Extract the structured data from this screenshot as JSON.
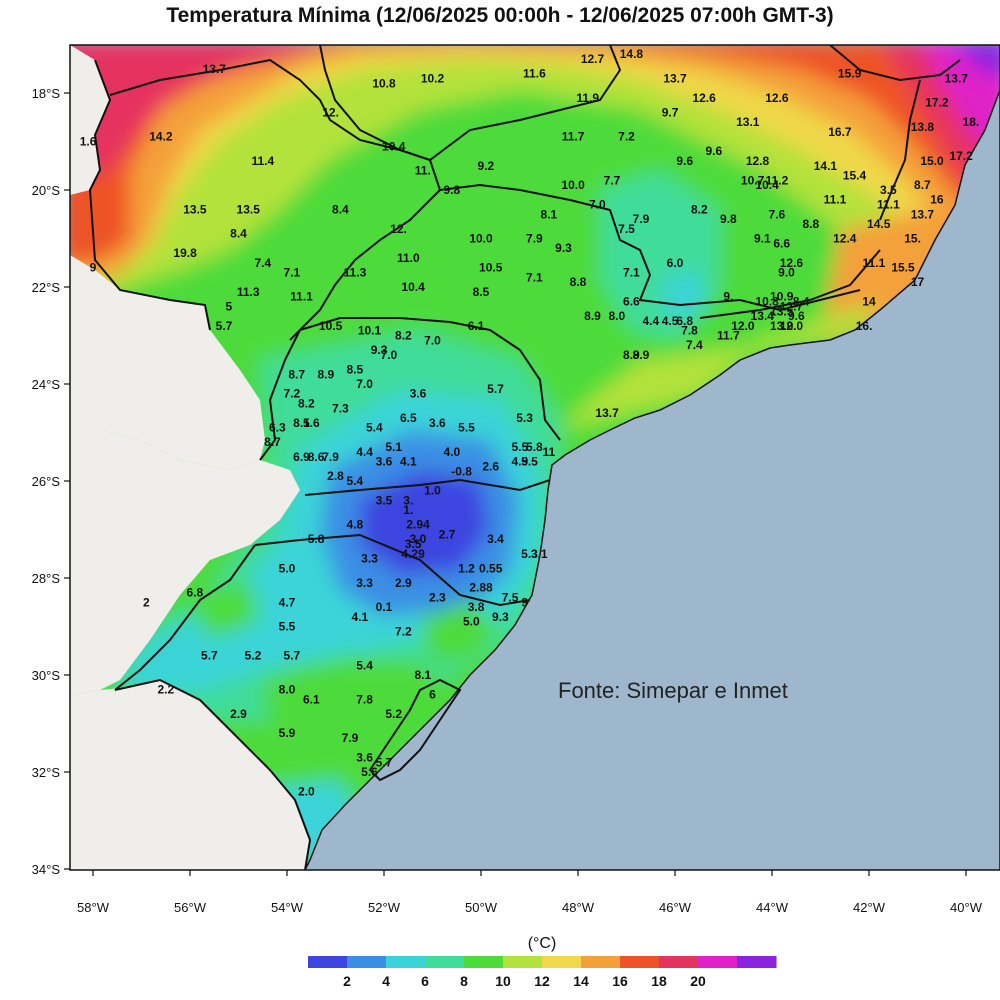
{
  "title": "Temperatura Mínima (12/06/2025 00:00h - 12/06/2025 07:00h GMT-3)",
  "source": "Fonte: Simepar e Inmet",
  "unit_label": "(°C)",
  "colors": {
    "ocean": "#9fb7cc",
    "foreign_land": "#f0eeea",
    "lt2": "#3d44e0",
    "c2_4": "#3a8fe4",
    "c4_6": "#3ad4d8",
    "c6_8": "#3fdc9a",
    "c8_10": "#4ddb3a",
    "c10_12": "#b2e23b",
    "c12_14": "#f0d84a",
    "c14_16": "#f4a03a",
    "c16_18": "#ee5228",
    "c18_20": "#e6335e",
    "c20_plus": "#e020c8",
    "top": "#8a22e0"
  },
  "latitude_ticks": [
    {
      "lat": -18,
      "label": "18°S"
    },
    {
      "lat": -20,
      "label": "20°S"
    },
    {
      "lat": -22,
      "label": "22°S"
    },
    {
      "lat": -24,
      "label": "24°S"
    },
    {
      "lat": -26,
      "label": "26°S"
    },
    {
      "lat": -28,
      "label": "28°S"
    },
    {
      "lat": -30,
      "label": "30°S"
    },
    {
      "lat": -32,
      "label": "32°S"
    },
    {
      "lat": -34,
      "label": "34°S"
    }
  ],
  "longitude_ticks": [
    {
      "lon": -58,
      "label": "58°W"
    },
    {
      "lon": -56,
      "label": "56°W"
    },
    {
      "lon": -54,
      "label": "54°W"
    },
    {
      "lon": -52,
      "label": "52°W"
    },
    {
      "lon": -50,
      "label": "50°W"
    },
    {
      "lon": -48,
      "label": "48°W"
    },
    {
      "lon": -46,
      "label": "46°W"
    },
    {
      "lon": -44,
      "label": "44°W"
    },
    {
      "lon": -42,
      "label": "42°W"
    },
    {
      "lon": -40,
      "label": "40°W"
    }
  ],
  "colorbar": {
    "labels": [
      "2",
      "4",
      "6",
      "8",
      "10",
      "12",
      "14",
      "16",
      "18",
      "20"
    ],
    "colors": [
      "#3d44e0",
      "#3a8fe4",
      "#3ad4d8",
      "#3fdc9a",
      "#4ddb3a",
      "#b2e23b",
      "#f0d84a",
      "#f4a03a",
      "#ee5228",
      "#e6335e",
      "#e020c8",
      "#8a22e0"
    ]
  },
  "stations": [
    {
      "lon": -55.5,
      "lat": -17.5,
      "t": "13.7"
    },
    {
      "lon": -52.0,
      "lat": -17.8,
      "t": "10.8"
    },
    {
      "lon": -51.0,
      "lat": -17.7,
      "t": "10.2"
    },
    {
      "lon": -48.9,
      "lat": -17.6,
      "t": "11.6"
    },
    {
      "lon": -47.7,
      "lat": -17.3,
      "t": "12.7"
    },
    {
      "lon": -46.9,
      "lat": -17.2,
      "t": "14.8"
    },
    {
      "lon": -47.8,
      "lat": -18.1,
      "t": "11.9"
    },
    {
      "lon": -46.0,
      "lat": -17.7,
      "t": "13.7"
    },
    {
      "lon": -45.4,
      "lat": -18.1,
      "t": "12.6"
    },
    {
      "lon": -43.9,
      "lat": -18.1,
      "t": "12.6"
    },
    {
      "lon": -42.4,
      "lat": -17.6,
      "t": "15.9"
    },
    {
      "lon": -40.2,
      "lat": -17.7,
      "t": "13.7"
    },
    {
      "lon": -40.6,
      "lat": -18.2,
      "t": "17.2"
    },
    {
      "lon": -39.9,
      "lat": -18.6,
      "t": "18."
    },
    {
      "lon": -40.9,
      "lat": -18.7,
      "t": "13.8"
    },
    {
      "lon": -58.1,
      "lat": -19.0,
      "t": "1.6"
    },
    {
      "lon": -56.6,
      "lat": -18.9,
      "t": "14.2"
    },
    {
      "lon": -53.1,
      "lat": -18.4,
      "t": "12."
    },
    {
      "lon": -54.5,
      "lat": -19.4,
      "t": "11.4"
    },
    {
      "lon": -51.8,
      "lat": -19.1,
      "t": "10.4"
    },
    {
      "lon": -46.1,
      "lat": -18.4,
      "t": "9.7"
    },
    {
      "lon": -44.5,
      "lat": -18.6,
      "t": "13.1"
    },
    {
      "lon": -48.1,
      "lat": -18.9,
      "t": "11.7"
    },
    {
      "lon": -47.0,
      "lat": -18.9,
      "t": "7.2"
    },
    {
      "lon": -49.9,
      "lat": -19.5,
      "t": "9.2"
    },
    {
      "lon": -45.8,
      "lat": -19.4,
      "t": "9.6"
    },
    {
      "lon": -45.2,
      "lat": -19.2,
      "t": "9.6"
    },
    {
      "lon": -44.3,
      "lat": -19.4,
      "t": "12.8"
    },
    {
      "lon": -42.6,
      "lat": -18.8,
      "t": "16.7"
    },
    {
      "lon": -42.9,
      "lat": -19.5,
      "t": "14.1"
    },
    {
      "lon": -42.3,
      "lat": -19.7,
      "t": "15.4"
    },
    {
      "lon": -40.7,
      "lat": -19.4,
      "t": "15.0"
    },
    {
      "lon": -40.1,
      "lat": -19.3,
      "t": "17.2"
    },
    {
      "lon": -51.2,
      "lat": -19.6,
      "t": "11."
    },
    {
      "lon": -44.4,
      "lat": -19.8,
      "t": "10.7"
    },
    {
      "lon": -44.1,
      "lat": -19.9,
      "t": "10.4"
    },
    {
      "lon": -43.9,
      "lat": -19.8,
      "t": "11.2"
    },
    {
      "lon": -48.1,
      "lat": -19.9,
      "t": "10.0"
    },
    {
      "lon": -47.3,
      "lat": -19.8,
      "t": "7.7"
    },
    {
      "lon": -50.6,
      "lat": -20.0,
      "t": "9.8"
    },
    {
      "lon": -47.6,
      "lat": -20.3,
      "t": "7.0"
    },
    {
      "lon": -48.6,
      "lat": -20.5,
      "t": "8.1"
    },
    {
      "lon": -46.7,
      "lat": -20.6,
      "t": "7.9"
    },
    {
      "lon": -47.0,
      "lat": -20.8,
      "t": "7.5"
    },
    {
      "lon": -45.5,
      "lat": -20.4,
      "t": "8.2"
    },
    {
      "lon": -44.9,
      "lat": -20.6,
      "t": "9.8"
    },
    {
      "lon": -43.9,
      "lat": -20.5,
      "t": "7.6"
    },
    {
      "lon": -42.7,
      "lat": -20.2,
      "t": "11.1"
    },
    {
      "lon": -41.6,
      "lat": -20.0,
      "t": "3.5"
    },
    {
      "lon": -40.9,
      "lat": -19.9,
      "t": "8.7"
    },
    {
      "lon": -41.6,
      "lat": -20.3,
      "t": "11.1"
    },
    {
      "lon": -40.6,
      "lat": -20.2,
      "t": "16"
    },
    {
      "lon": -40.9,
      "lat": -20.5,
      "t": "13.7"
    },
    {
      "lon": -41.8,
      "lat": -20.7,
      "t": "14.5"
    },
    {
      "lon": -43.2,
      "lat": -20.7,
      "t": "8.8"
    },
    {
      "lon": -55.9,
      "lat": -20.4,
      "t": "13.5"
    },
    {
      "lon": -54.8,
      "lat": -20.4,
      "t": "13.5"
    },
    {
      "lon": -52.9,
      "lat": -20.4,
      "t": "8.4"
    },
    {
      "lon": -55.0,
      "lat": -20.9,
      "t": "8.4"
    },
    {
      "lon": -51.7,
      "lat": -20.8,
      "t": "12."
    },
    {
      "lon": -50.0,
      "lat": -21.0,
      "t": "10.0"
    },
    {
      "lon": -48.9,
      "lat": -21.0,
      "t": "7.9"
    },
    {
      "lon": -48.3,
      "lat": -21.2,
      "t": "9.3"
    },
    {
      "lon": -44.2,
      "lat": -21.0,
      "t": "9.1"
    },
    {
      "lon": -43.8,
      "lat": -21.1,
      "t": "6.6"
    },
    {
      "lon": -42.5,
      "lat": -21.0,
      "t": "12.4"
    },
    {
      "lon": -41.1,
      "lat": -21.0,
      "t": "15."
    },
    {
      "lon": -56.1,
      "lat": -21.3,
      "t": "19.8"
    },
    {
      "lon": -54.5,
      "lat": -21.5,
      "t": "7.4"
    },
    {
      "lon": -53.9,
      "lat": -21.7,
      "t": "7.1"
    },
    {
      "lon": -52.6,
      "lat": -21.7,
      "t": "11.3"
    },
    {
      "lon": -51.5,
      "lat": -21.4,
      "t": "11.0"
    },
    {
      "lon": -49.8,
      "lat": -21.6,
      "t": "10.5"
    },
    {
      "lon": -48.9,
      "lat": -21.8,
      "t": "7.1"
    },
    {
      "lon": -48.0,
      "lat": -21.9,
      "t": "8.8"
    },
    {
      "lon": -46.9,
      "lat": -21.7,
      "t": "7.1"
    },
    {
      "lon": -46.0,
      "lat": -21.5,
      "t": "6.0"
    },
    {
      "lon": -43.6,
      "lat": -21.5,
      "t": "12.6"
    },
    {
      "lon": -43.7,
      "lat": -21.7,
      "t": "9.0"
    },
    {
      "lon": -41.9,
      "lat": -21.5,
      "t": "11.1"
    },
    {
      "lon": -41.3,
      "lat": -21.6,
      "t": "15.5"
    },
    {
      "lon": -41.0,
      "lat": -21.9,
      "t": "17"
    },
    {
      "lon": -58.0,
      "lat": -21.6,
      "t": "9"
    },
    {
      "lon": -54.8,
      "lat": -22.1,
      "t": "11.3"
    },
    {
      "lon": -53.7,
      "lat": -22.2,
      "t": "11.1"
    },
    {
      "lon": -51.4,
      "lat": -22.0,
      "t": "10.4"
    },
    {
      "lon": -50.0,
      "lat": -22.1,
      "t": "8.5"
    },
    {
      "lon": -46.9,
      "lat": -22.3,
      "t": "6.6"
    },
    {
      "lon": -44.9,
      "lat": -22.2,
      "t": "9."
    },
    {
      "lon": -43.4,
      "lat": -22.3,
      "t": "8.4"
    },
    {
      "lon": -42.0,
      "lat": -22.3,
      "t": "14"
    },
    {
      "lon": -43.8,
      "lat": -22.2,
      "t": "10.9"
    },
    {
      "lon": -44.1,
      "lat": -22.3,
      "t": "10.8"
    },
    {
      "lon": -43.6,
      "lat": -22.4,
      "t": "12.7"
    },
    {
      "lon": -43.8,
      "lat": -22.5,
      "t": "13.5"
    },
    {
      "lon": -43.5,
      "lat": -22.6,
      "t": "9.6"
    },
    {
      "lon": -43.8,
      "lat": -22.8,
      "t": "13.0"
    },
    {
      "lon": -43.6,
      "lat": -22.8,
      "t": "12.0"
    },
    {
      "lon": -42.1,
      "lat": -22.8,
      "t": "16."
    },
    {
      "lon": -55.2,
      "lat": -22.4,
      "t": "5"
    },
    {
      "lon": -55.3,
      "lat": -22.8,
      "t": "5.7"
    },
    {
      "lon": -53.1,
      "lat": -22.8,
      "t": "10.5"
    },
    {
      "lon": -52.3,
      "lat": -22.9,
      "t": "10.1"
    },
    {
      "lon": -47.7,
      "lat": -22.6,
      "t": "8.9"
    },
    {
      "lon": -47.2,
      "lat": -22.6,
      "t": "8.0"
    },
    {
      "lon": -46.5,
      "lat": -22.7,
      "t": "4.4"
    },
    {
      "lon": -46.1,
      "lat": -22.7,
      "t": "4.5"
    },
    {
      "lon": -45.8,
      "lat": -22.7,
      "t": "6.8"
    },
    {
      "lon": -45.7,
      "lat": -22.9,
      "t": "7.8"
    },
    {
      "lon": -45.6,
      "lat": -23.2,
      "t": "7.4"
    },
    {
      "lon": -44.6,
      "lat": -22.8,
      "t": "12.0"
    },
    {
      "lon": -44.9,
      "lat": -23.0,
      "t": "11.7"
    },
    {
      "lon": -44.2,
      "lat": -22.6,
      "t": "13.4"
    },
    {
      "lon": -50.1,
      "lat": -22.8,
      "t": "6.1"
    },
    {
      "lon": -51.6,
      "lat": -23.0,
      "t": "8.2"
    },
    {
      "lon": -51.0,
      "lat": -23.1,
      "t": "7.0"
    },
    {
      "lon": -52.1,
      "lat": -23.3,
      "t": "9.3"
    },
    {
      "lon": -51.9,
      "lat": -23.4,
      "t": "7.0"
    },
    {
      "lon": -46.9,
      "lat": -23.4,
      "t": "8.9"
    },
    {
      "lon": -46.7,
      "lat": -23.4,
      "t": "8.9"
    },
    {
      "lon": -53.8,
      "lat": -23.8,
      "t": "8.7"
    },
    {
      "lon": -53.2,
      "lat": -23.8,
      "t": "8.9"
    },
    {
      "lon": -52.6,
      "lat": -23.7,
      "t": "8.5"
    },
    {
      "lon": -52.4,
      "lat": -24.0,
      "t": "7.0"
    },
    {
      "lon": -49.7,
      "lat": -24.1,
      "t": "5.7"
    },
    {
      "lon": -53.9,
      "lat": -24.2,
      "t": "7.2"
    },
    {
      "lon": -53.6,
      "lat": -24.4,
      "t": "8.2"
    },
    {
      "lon": -52.9,
      "lat": -24.5,
      "t": "7.3"
    },
    {
      "lon": -51.3,
      "lat": -24.2,
      "t": "3.6"
    },
    {
      "lon": -51.5,
      "lat": -24.7,
      "t": "6.5"
    },
    {
      "lon": -50.9,
      "lat": -24.8,
      "t": "3.6"
    },
    {
      "lon": -47.4,
      "lat": -24.6,
      "t": "13.7"
    },
    {
      "lon": -53.7,
      "lat": -24.8,
      "t": "8.1"
    },
    {
      "lon": -53.5,
      "lat": -24.8,
      "t": "5.6"
    },
    {
      "lon": -54.2,
      "lat": -24.9,
      "t": "6.3"
    },
    {
      "lon": -52.2,
      "lat": -24.9,
      "t": "5.4"
    },
    {
      "lon": -50.3,
      "lat": -24.9,
      "t": "5.5"
    },
    {
      "lon": -49.1,
      "lat": -24.7,
      "t": "5.3"
    },
    {
      "lon": -54.3,
      "lat": -25.2,
      "t": "8.7"
    },
    {
      "lon": -51.8,
      "lat": -25.3,
      "t": "5.1"
    },
    {
      "lon": -52.4,
      "lat": -25.4,
      "t": "4.4"
    },
    {
      "lon": -50.6,
      "lat": -25.4,
      "t": "4.0"
    },
    {
      "lon": -49.2,
      "lat": -25.3,
      "t": "5.5"
    },
    {
      "lon": -48.9,
      "lat": -25.3,
      "t": "5.8"
    },
    {
      "lon": -48.6,
      "lat": -25.4,
      "t": "11"
    },
    {
      "lon": -53.7,
      "lat": -25.5,
      "t": "6.9"
    },
    {
      "lon": -53.4,
      "lat": -25.5,
      "t": "8.6"
    },
    {
      "lon": -53.1,
      "lat": -25.5,
      "t": "7.9"
    },
    {
      "lon": -52.0,
      "lat": -25.6,
      "t": "3.6"
    },
    {
      "lon": -51.5,
      "lat": -25.6,
      "t": "4.1"
    },
    {
      "lon": -50.4,
      "lat": -25.8,
      "t": "-0.8"
    },
    {
      "lon": -49.8,
      "lat": -25.7,
      "t": "2.6"
    },
    {
      "lon": -49.2,
      "lat": -25.6,
      "t": "4.9"
    },
    {
      "lon": -49.0,
      "lat": -25.6,
      "t": "5.5"
    },
    {
      "lon": -53.0,
      "lat": -25.9,
      "t": "2.8"
    },
    {
      "lon": -52.6,
      "lat": -26.0,
      "t": "5.4"
    },
    {
      "lon": -51.0,
      "lat": -26.2,
      "t": "1.0"
    },
    {
      "lon": -52.0,
      "lat": -26.4,
      "t": "3.5"
    },
    {
      "lon": -51.5,
      "lat": -26.4,
      "t": "3."
    },
    {
      "lon": -51.5,
      "lat": -26.6,
      "t": "1."
    },
    {
      "lon": -52.6,
      "lat": -26.9,
      "t": "4.8"
    },
    {
      "lon": -51.3,
      "lat": -26.9,
      "t": "2.94"
    },
    {
      "lon": -50.7,
      "lat": -27.1,
      "t": "2.7"
    },
    {
      "lon": -51.3,
      "lat": -27.2,
      "t": "3.0"
    },
    {
      "lon": -51.4,
      "lat": -27.3,
      "t": "3.5"
    },
    {
      "lon": -51.4,
      "lat": -27.5,
      "t": "4.29"
    },
    {
      "lon": -49.7,
      "lat": -27.2,
      "t": "3.4"
    },
    {
      "lon": -49.0,
      "lat": -27.5,
      "t": "5.3"
    },
    {
      "lon": -48.8,
      "lat": -27.5,
      "t": "3.1"
    },
    {
      "lon": -53.4,
      "lat": -27.2,
      "t": "5.8"
    },
    {
      "lon": -52.3,
      "lat": -27.6,
      "t": "3.3"
    },
    {
      "lon": -50.3,
      "lat": -27.8,
      "t": "1.2"
    },
    {
      "lon": -49.8,
      "lat": -27.8,
      "t": "0.55"
    },
    {
      "lon": -54.0,
      "lat": -27.8,
      "t": "5.0"
    },
    {
      "lon": -52.4,
      "lat": -28.1,
      "t": "3.3"
    },
    {
      "lon": -51.6,
      "lat": -28.1,
      "t": "2.9"
    },
    {
      "lon": -50.0,
      "lat": -28.2,
      "t": "2.88"
    },
    {
      "lon": -55.9,
      "lat": -28.3,
      "t": "6.8"
    },
    {
      "lon": -50.9,
      "lat": -28.4,
      "t": "2.3"
    },
    {
      "lon": -49.4,
      "lat": -28.4,
      "t": "7.5"
    },
    {
      "lon": -49.1,
      "lat": -28.5,
      "t": "9"
    },
    {
      "lon": -54.0,
      "lat": -28.5,
      "t": "4.7"
    },
    {
      "lon": -52.0,
      "lat": -28.6,
      "t": "0.1"
    },
    {
      "lon": -50.1,
      "lat": -28.6,
      "t": "3.8"
    },
    {
      "lon": -52.5,
      "lat": -28.8,
      "t": "4.1"
    },
    {
      "lon": -49.6,
      "lat": -28.8,
      "t": "9.3"
    },
    {
      "lon": -50.2,
      "lat": -28.9,
      "t": "5.0"
    },
    {
      "lon": -56.9,
      "lat": -28.5,
      "t": "2"
    },
    {
      "lon": -54.0,
      "lat": -29.0,
      "t": "5.5"
    },
    {
      "lon": -51.6,
      "lat": -29.1,
      "t": "7.2"
    },
    {
      "lon": -55.6,
      "lat": -29.6,
      "t": "5.7"
    },
    {
      "lon": -54.7,
      "lat": -29.6,
      "t": "5.2"
    },
    {
      "lon": -53.9,
      "lat": -29.6,
      "t": "5.7"
    },
    {
      "lon": -52.4,
      "lat": -29.8,
      "t": "5.4"
    },
    {
      "lon": -51.2,
      "lat": -30.0,
      "t": "8.1"
    },
    {
      "lon": -56.5,
      "lat": -30.3,
      "t": "2.2"
    },
    {
      "lon": -54.0,
      "lat": -30.3,
      "t": "8.0"
    },
    {
      "lon": -53.5,
      "lat": -30.5,
      "t": "6.1"
    },
    {
      "lon": -52.4,
      "lat": -30.5,
      "t": "7.8"
    },
    {
      "lon": -51.0,
      "lat": -30.4,
      "t": "6"
    },
    {
      "lon": -55.0,
      "lat": -30.8,
      "t": "2.9"
    },
    {
      "lon": -51.8,
      "lat": -30.8,
      "t": "5.2"
    },
    {
      "lon": -54.0,
      "lat": -31.2,
      "t": "5.9"
    },
    {
      "lon": -52.7,
      "lat": -31.3,
      "t": "7.9"
    },
    {
      "lon": -52.4,
      "lat": -31.7,
      "t": "3.6"
    },
    {
      "lon": -52.0,
      "lat": -31.8,
      "t": "5.7"
    },
    {
      "lon": -52.3,
      "lat": -32.0,
      "t": "5.6"
    },
    {
      "lon": -53.6,
      "lat": -32.4,
      "t": "2.0"
    }
  ]
}
